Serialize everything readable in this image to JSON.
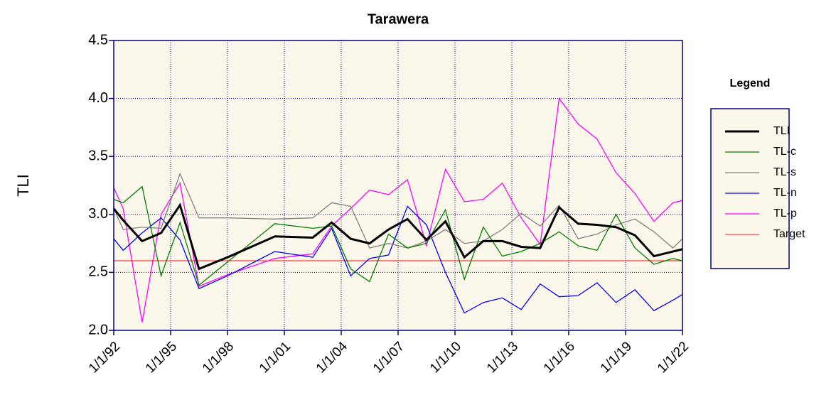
{
  "chart_data": {
    "type": "line",
    "title": "Tarawera",
    "ylabel": "TLI",
    "legend_title": "Legend",
    "legend": "right",
    "grid": true,
    "x": [
      "1992-01-01",
      "1992-07-01",
      "1993-07-01",
      "1994-07-01",
      "1995-07-01",
      "1996-07-01",
      "1998-01-01",
      "2000-07-01",
      "2002-07-01",
      "2003-07-01",
      "2004-07-01",
      "2005-07-01",
      "2006-07-01",
      "2007-07-01",
      "2008-07-01",
      "2009-07-01",
      "2010-07-01",
      "2011-07-01",
      "2012-07-01",
      "2013-07-01",
      "2014-07-01",
      "2015-07-01",
      "2016-07-01",
      "2017-07-01",
      "2018-07-01",
      "2019-07-01",
      "2020-07-01",
      "2021-07-01",
      "2022-01-01"
    ],
    "xlim": [
      "1992-01-01",
      "2022-01-01"
    ],
    "xticks": [
      {
        "value": "1992-01-01",
        "label": "1/1/92"
      },
      {
        "value": "1995-01-01",
        "label": "1/1/95"
      },
      {
        "value": "1998-01-01",
        "label": "1/1/98"
      },
      {
        "value": "2001-01-01",
        "label": "1/1/01"
      },
      {
        "value": "2004-01-01",
        "label": "1/1/04"
      },
      {
        "value": "2007-01-01",
        "label": "1/1/07"
      },
      {
        "value": "2010-01-01",
        "label": "1/1/10"
      },
      {
        "value": "2013-01-01",
        "label": "1/1/13"
      },
      {
        "value": "2016-01-01",
        "label": "1/1/16"
      },
      {
        "value": "2019-01-01",
        "label": "1/1/19"
      },
      {
        "value": "2022-01-01",
        "label": "1/1/22"
      }
    ],
    "ylim": [
      2.0,
      4.5
    ],
    "yticks": [
      {
        "value": 2.0,
        "label": "2.0"
      },
      {
        "value": 2.5,
        "label": "2.5"
      },
      {
        "value": 3.0,
        "label": "3.0"
      },
      {
        "value": 3.5,
        "label": "3.5"
      },
      {
        "value": 4.0,
        "label": "4.0"
      },
      {
        "value": 4.5,
        "label": "4.5"
      }
    ],
    "series": [
      {
        "name": "TLI",
        "color": "#000000",
        "width": 3,
        "values": [
          3.05,
          2.95,
          2.77,
          2.84,
          3.08,
          2.53,
          2.63,
          2.81,
          2.8,
          2.93,
          2.79,
          2.75,
          2.87,
          2.96,
          2.78,
          2.94,
          2.63,
          2.77,
          2.77,
          2.72,
          2.71,
          3.06,
          2.92,
          2.91,
          2.89,
          2.82,
          2.64,
          2.68,
          2.7
        ]
      },
      {
        "name": "TL-c",
        "color": "#008000",
        "width": 1.3,
        "values": [
          3.13,
          3.1,
          3.24,
          2.47,
          2.93,
          2.39,
          2.59,
          2.92,
          2.88,
          2.9,
          2.53,
          2.42,
          2.83,
          2.71,
          2.75,
          3.04,
          2.44,
          2.89,
          2.64,
          2.68,
          2.75,
          2.85,
          2.73,
          2.69,
          3.0,
          2.71,
          2.57,
          2.62,
          2.6
        ]
      },
      {
        "name": "TL-s",
        "color": "#808080",
        "width": 1.3,
        "values": [
          3.05,
          2.87,
          2.89,
          2.88,
          3.35,
          2.97,
          2.97,
          2.96,
          2.97,
          3.1,
          3.07,
          2.71,
          2.75,
          2.71,
          2.77,
          2.87,
          2.75,
          2.77,
          2.87,
          3.01,
          2.9,
          3.08,
          2.79,
          2.83,
          2.91,
          2.96,
          2.85,
          2.71,
          2.79
        ]
      },
      {
        "name": "TL-n",
        "color": "#0000ff",
        "width": 1.3,
        "values": [
          2.79,
          2.69,
          2.84,
          2.97,
          2.78,
          2.36,
          2.47,
          2.68,
          2.63,
          2.88,
          2.47,
          2.62,
          2.65,
          3.07,
          2.91,
          2.5,
          2.15,
          2.24,
          2.28,
          2.18,
          2.4,
          2.29,
          2.3,
          2.41,
          2.24,
          2.35,
          2.17,
          2.26,
          2.31
        ]
      },
      {
        "name": "TL-p",
        "color": "#ff00ff",
        "width": 1.3,
        "values": [
          3.23,
          3.05,
          2.07,
          3.0,
          3.27,
          2.38,
          2.48,
          2.62,
          2.66,
          2.9,
          3.05,
          3.21,
          3.17,
          3.3,
          2.73,
          3.39,
          3.11,
          3.13,
          3.27,
          2.97,
          2.74,
          4.0,
          3.78,
          3.65,
          3.36,
          3.18,
          2.94,
          3.1,
          3.12
        ]
      },
      {
        "name": "Target",
        "color": "#ff4040",
        "width": 1.3,
        "x": [
          "1992-01-01",
          "2022-01-01"
        ],
        "values": [
          2.6,
          2.6
        ]
      }
    ]
  }
}
